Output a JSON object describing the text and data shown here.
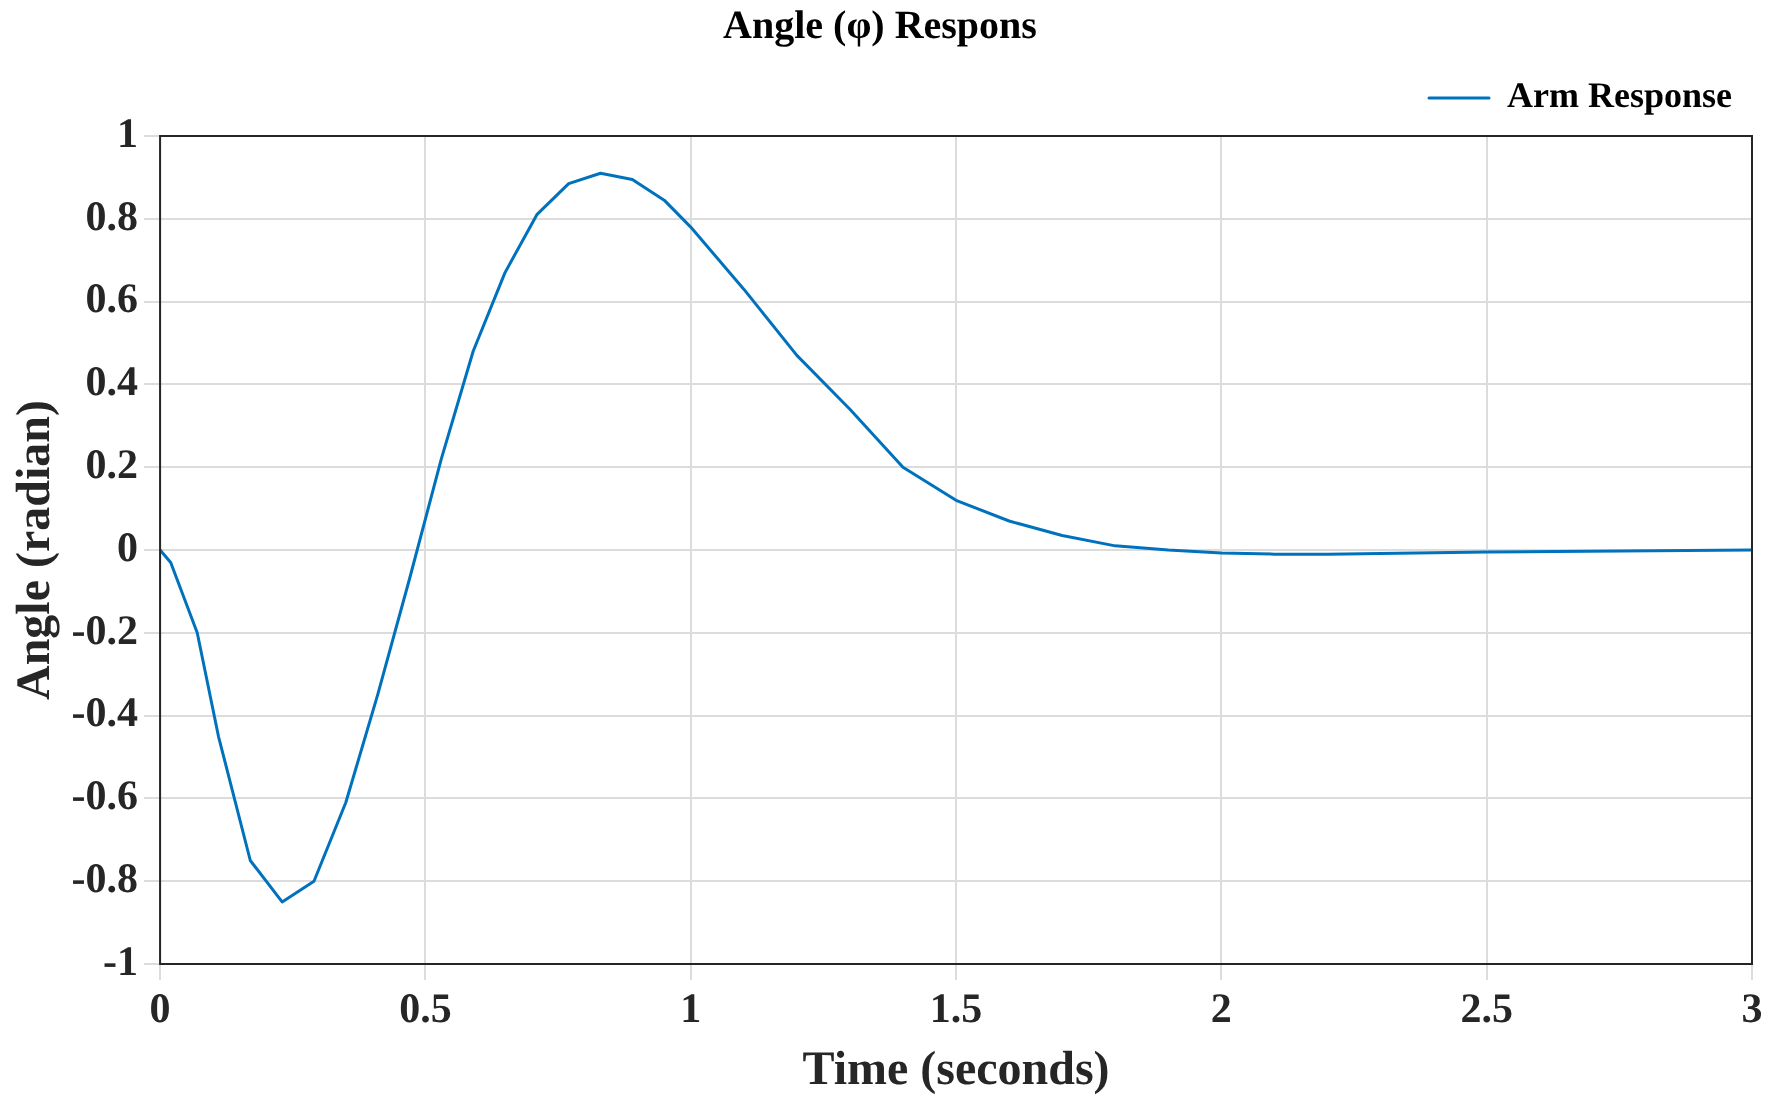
{
  "chart_data": {
    "type": "line",
    "title": "Angle (φ) Respons",
    "xlabel": "Time (seconds)",
    "ylabel": "Angle (radian)",
    "x": [
      0,
      0.02,
      0.07,
      0.11,
      0.17,
      0.23,
      0.29,
      0.35,
      0.41,
      0.47,
      0.53,
      0.59,
      0.65,
      0.71,
      0.77,
      0.83,
      0.89,
      0.95,
      1.0,
      1.1,
      1.2,
      1.3,
      1.4,
      1.5,
      1.6,
      1.7,
      1.8,
      1.9,
      2.0,
      2.1,
      2.2,
      2.5,
      3.0
    ],
    "series": [
      {
        "name": "Arm Response",
        "color": "#0072bd",
        "values": [
          0,
          -0.03,
          -0.2,
          -0.45,
          -0.75,
          -0.85,
          -0.8,
          -0.61,
          -0.35,
          -0.07,
          0.22,
          0.48,
          0.67,
          0.81,
          0.885,
          0.91,
          0.895,
          0.845,
          0.78,
          0.63,
          0.47,
          0.34,
          0.2,
          0.12,
          0.07,
          0.035,
          0.01,
          0,
          -0.007,
          -0.01,
          -0.01,
          -0.005,
          0
        ]
      }
    ],
    "xlim": [
      0,
      3
    ],
    "xticks": [
      0,
      0.5,
      1,
      1.5,
      2,
      2.5,
      3
    ],
    "ylim": [
      -1,
      1
    ],
    "yticks": [
      -1,
      -0.8,
      -0.6,
      -0.4,
      -0.2,
      0,
      0.2,
      0.4,
      0.6,
      0.8,
      1
    ],
    "grid": true,
    "legend": "top right",
    "marker": "none",
    "line_style": "solid"
  }
}
